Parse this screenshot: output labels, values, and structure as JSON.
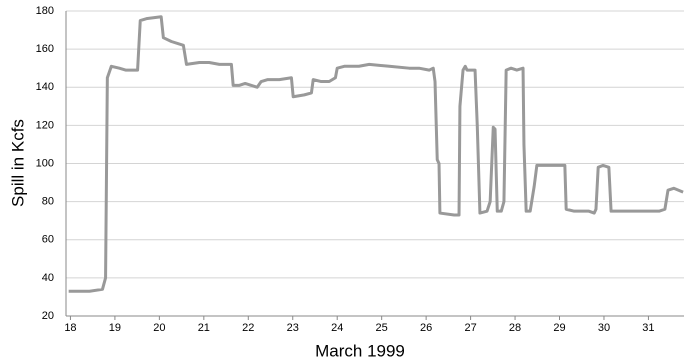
{
  "chart_data": {
    "type": "line",
    "xlabel": "March 1999",
    "ylabel": "Spill in Kcfs",
    "xlim": [
      17.9,
      31.8
    ],
    "xticks": [
      18,
      19,
      20,
      21,
      22,
      23,
      24,
      25,
      26,
      27,
      28,
      29,
      30,
      31
    ],
    "ylim": [
      20,
      180
    ],
    "yticks": [
      20,
      40,
      60,
      80,
      100,
      120,
      140,
      160,
      180
    ],
    "grid": true,
    "series": [
      {
        "color": "#999999",
        "x": [
          17.96,
          18.43,
          18.72,
          18.79,
          18.83,
          18.92,
          19.1,
          19.24,
          19.51,
          19.57,
          19.71,
          20.04,
          20.09,
          20.27,
          20.54,
          20.61,
          20.9,
          21.12,
          21.35,
          21.62,
          21.66,
          21.8,
          21.93,
          22.2,
          22.29,
          22.43,
          22.7,
          22.97,
          23.01,
          23.26,
          23.42,
          23.46,
          23.64,
          23.82,
          23.96,
          24.0,
          24.16,
          24.49,
          24.72,
          25.17,
          25.62,
          25.84,
          26.07,
          26.16,
          26.2,
          26.25,
          26.29,
          26.31,
          26.63,
          26.74,
          26.76,
          26.83,
          26.88,
          26.92,
          27.1,
          27.15,
          27.21,
          27.37,
          27.44,
          27.51,
          27.55,
          27.6,
          27.69,
          27.75,
          27.8,
          27.91,
          28.04,
          28.18,
          28.2,
          28.25,
          28.34,
          28.43,
          28.49,
          28.76,
          29.12,
          29.15,
          29.33,
          29.66,
          29.78,
          29.82,
          29.87,
          29.98,
          30.11,
          30.16,
          30.45,
          30.79,
          31.24,
          31.37,
          31.44,
          31.57,
          31.78
        ],
        "values": [
          33,
          33,
          34,
          40,
          145,
          151,
          150,
          149,
          149,
          175,
          176,
          177,
          166,
          164,
          162,
          152,
          153,
          153,
          152,
          152,
          141,
          141,
          142,
          140,
          143,
          144,
          144,
          145,
          135,
          136,
          137,
          144,
          143,
          143,
          145,
          150,
          151,
          151,
          152,
          151,
          150,
          150,
          149,
          150,
          143,
          102,
          100,
          74,
          73,
          73,
          130,
          149,
          151,
          149,
          149,
          120,
          74,
          75,
          80,
          119,
          118,
          75,
          75,
          80,
          149,
          150,
          149,
          150,
          110,
          75,
          75,
          88,
          99,
          99,
          99,
          76,
          75,
          75,
          74,
          76,
          98,
          99,
          98,
          75,
          75,
          75,
          75,
          76,
          86,
          87,
          85
        ]
      }
    ]
  }
}
